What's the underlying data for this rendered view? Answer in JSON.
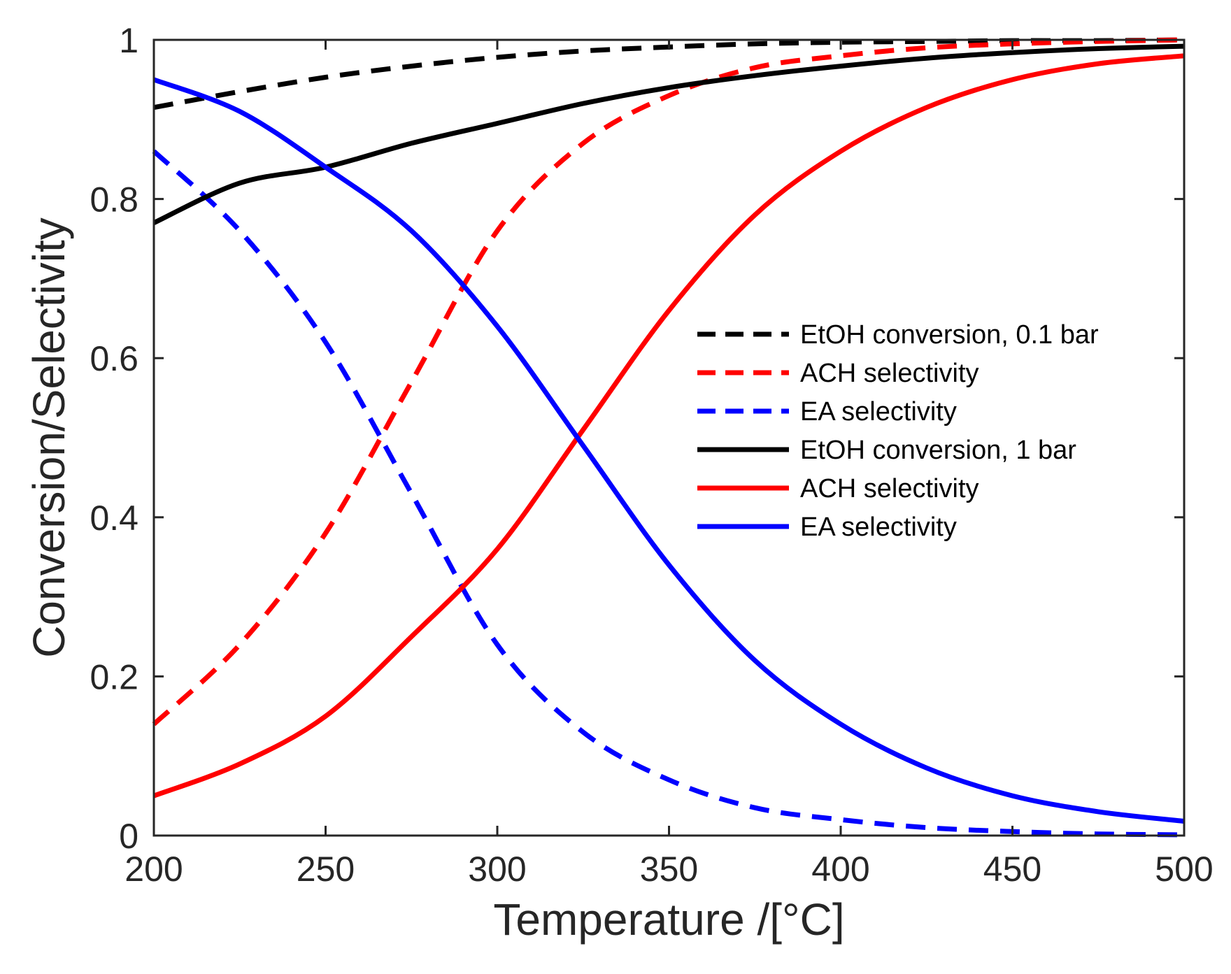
{
  "chart_data": {
    "type": "line",
    "xlabel": "Temperature /[°C]",
    "ylabel": "Conversion/Selectivity",
    "xlim": [
      200,
      500
    ],
    "ylim": [
      0,
      1
    ],
    "xticks": [
      200,
      250,
      300,
      350,
      400,
      450,
      500
    ],
    "yticks": [
      0,
      0.2,
      0.4,
      0.6,
      0.8,
      1
    ],
    "ytick_labels": [
      "0",
      "0.2",
      "0.4",
      "0.6",
      "0.8",
      "1"
    ],
    "grid": false,
    "legend_position": "right",
    "x": [
      200,
      225,
      250,
      275,
      300,
      325,
      350,
      375,
      400,
      425,
      450,
      475,
      500
    ],
    "series": [
      {
        "name": "EtOH conversion, 0.1 bar",
        "color": "#000000",
        "dash": true,
        "values": [
          0.915,
          0.935,
          0.953,
          0.967,
          0.978,
          0.986,
          0.991,
          0.995,
          0.997,
          0.998,
          0.999,
          0.999,
          1.0
        ]
      },
      {
        "name": "ACH selectivity",
        "color": "#ff0000",
        "dash": true,
        "values": [
          0.14,
          0.24,
          0.38,
          0.57,
          0.76,
          0.87,
          0.93,
          0.965,
          0.98,
          0.99,
          0.995,
          0.998,
          1.0
        ]
      },
      {
        "name": "EA selectivity",
        "color": "#0000ff",
        "dash": true,
        "values": [
          0.86,
          0.76,
          0.62,
          0.43,
          0.24,
          0.13,
          0.07,
          0.035,
          0.02,
          0.01,
          0.005,
          0.002,
          0.001
        ]
      },
      {
        "name": "EtOH conversion, 1 bar",
        "color": "#000000",
        "dash": false,
        "values": [
          0.77,
          0.82,
          0.84,
          0.87,
          0.895,
          0.92,
          0.94,
          0.955,
          0.967,
          0.977,
          0.984,
          0.989,
          0.992
        ]
      },
      {
        "name": "ACH selectivity",
        "color": "#ff0000",
        "dash": false,
        "values": [
          0.05,
          0.09,
          0.15,
          0.25,
          0.36,
          0.51,
          0.66,
          0.78,
          0.86,
          0.915,
          0.95,
          0.97,
          0.98
        ]
      },
      {
        "name": "EA selectivity",
        "color": "#0000ff",
        "dash": false,
        "values": [
          0.95,
          0.91,
          0.84,
          0.76,
          0.64,
          0.49,
          0.34,
          0.22,
          0.14,
          0.085,
          0.05,
          0.03,
          0.018
        ]
      }
    ]
  }
}
